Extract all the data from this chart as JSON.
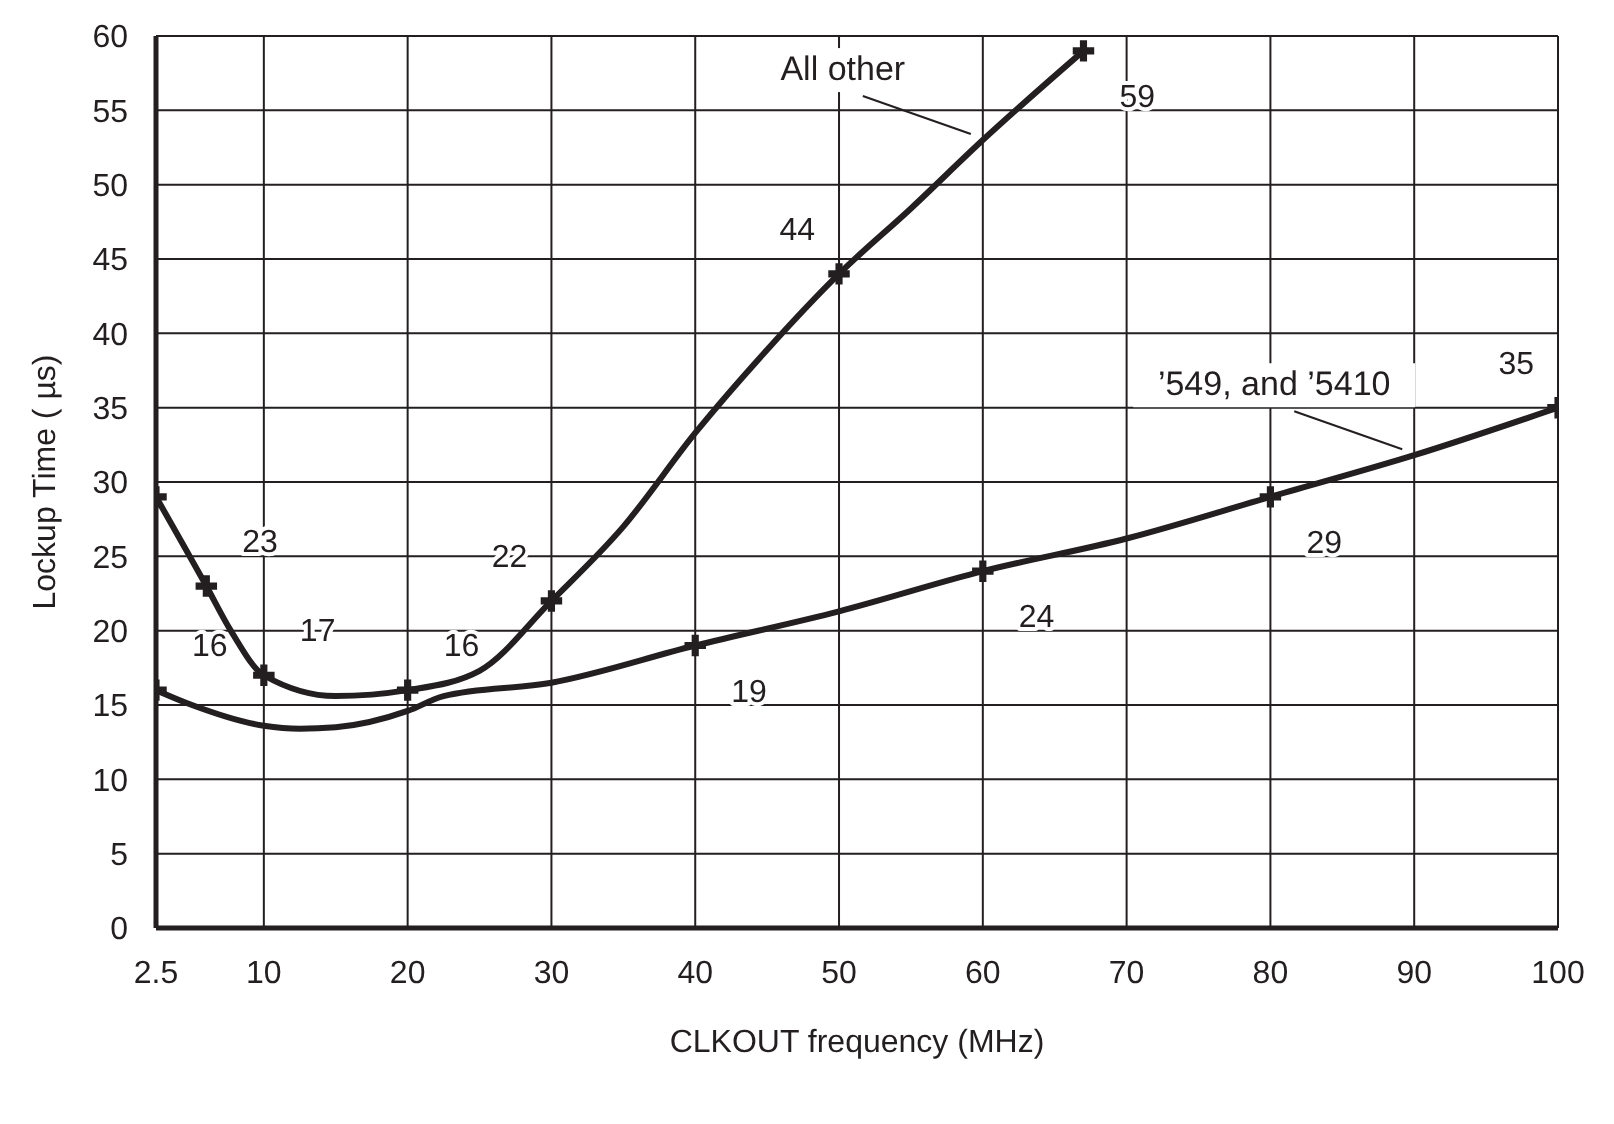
{
  "chart_data": {
    "type": "line",
    "xlabel": "CLKOUT frequency (MHz)",
    "ylabel": "Lockup Time ( µs)",
    "xlim": [
      2.5,
      100
    ],
    "xticks": [
      2.5,
      10,
      20,
      30,
      40,
      50,
      60,
      70,
      80,
      90,
      100
    ],
    "ylim": [
      0,
      60
    ],
    "yticks": [
      0,
      5,
      10,
      15,
      20,
      25,
      30,
      35,
      40,
      45,
      50,
      55,
      60
    ],
    "grid": true,
    "marker": "none",
    "line_style": "solid",
    "legend": false,
    "series": [
      {
        "name": "All other",
        "color": "#231f20",
        "x": [
          2.5,
          6,
          7.7,
          10,
          15,
          20,
          25,
          30,
          35,
          40,
          45,
          50,
          55,
          60,
          67
        ],
        "values": [
          29,
          23,
          20,
          17,
          15.6,
          16,
          17.3,
          22,
          27,
          33.3,
          38.9,
          44,
          48.4,
          53,
          59
        ]
      },
      {
        "name": "’549, and ’5410",
        "color": "#231f20",
        "x": [
          2.5,
          5,
          10,
          12.5,
          15,
          20,
          22.5,
          30,
          40,
          50,
          60,
          70,
          80,
          90,
          100
        ],
        "values": [
          16,
          15,
          13.6,
          13.4,
          13.5,
          14.6,
          15.6,
          16.5,
          19,
          21.3,
          24,
          26.2,
          29,
          31.8,
          35
        ]
      },
      {
        "type": "scatter",
        "marker": "cross",
        "color": "#231f20",
        "x": [
          2.5,
          6,
          10,
          20,
          30,
          50,
          67
        ],
        "values": [
          29,
          23,
          17,
          16,
          22,
          44,
          59
        ],
        "value_labels": [
          null,
          "23",
          "17",
          "16",
          "22",
          "44",
          "59"
        ]
      },
      {
        "type": "scatter",
        "marker": "cross",
        "color": "#231f20",
        "x": [
          2.5,
          40,
          60,
          80,
          100
        ],
        "values": [
          16,
          19,
          24,
          29,
          35
        ],
        "value_labels": [
          "16",
          "19",
          "24",
          "29",
          "35"
        ]
      }
    ]
  }
}
